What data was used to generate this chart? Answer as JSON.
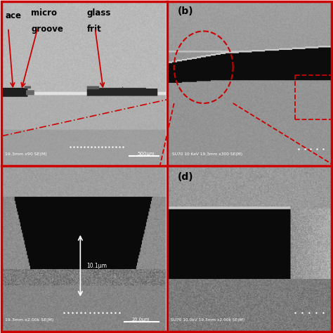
{
  "figure_size": [
    4.74,
    4.74
  ],
  "dpi": 100,
  "background_color": "#ffffff",
  "panel_a_bg": [
    0.72,
    0.7,
    0.68
  ],
  "panel_b_bg": [
    0.62,
    0.6,
    0.58
  ],
  "panel_c_bg": [
    0.55,
    0.52,
    0.5
  ],
  "panel_d_bg": [
    0.55,
    0.52,
    0.5
  ],
  "red_color": "#cc0000",
  "white_color": "#ffffff",
  "black_color": "#000000",
  "label_b": "(b)",
  "label_d": "(d)",
  "text_a_label1": "ace",
  "text_a_label2_line1": "micro",
  "text_a_label2_line2": "groove",
  "text_a_label3_line1": "glass",
  "text_a_label3_line2": "frit",
  "microscope_a": "19.3mm x90 SE(M)",
  "scale_a": "500μm",
  "microscope_b": "SU70 10 KeV 19.3mm x300 SE(M)",
  "microscope_c": "19.3mm x2.00k SE(M)",
  "scale_c": "20.0μm",
  "measure_c": "10.1μm",
  "microscope_d": "SU70 10.0kV 19.3mm x2.00k SE(M)"
}
